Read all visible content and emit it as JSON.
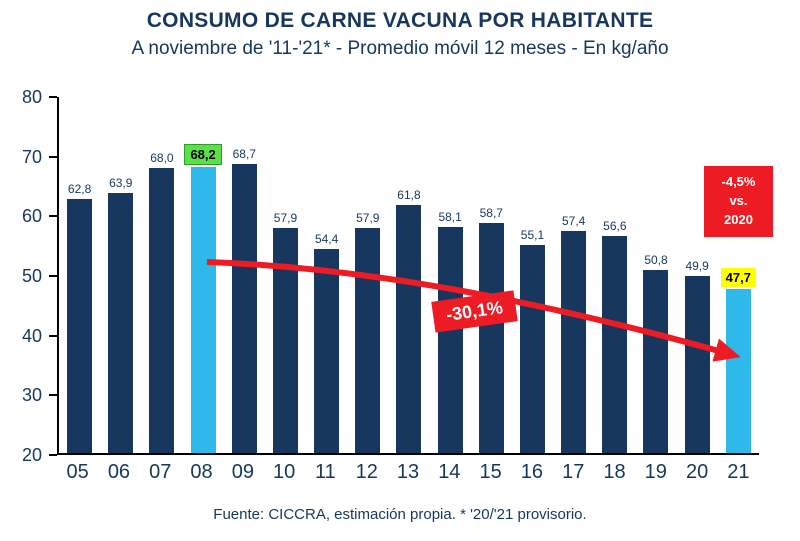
{
  "title": "CONSUMO DE CARNE VACUNA POR HABITANTE",
  "subtitle": "A noviembre de '11-'21* - Promedio móvil 12 meses -  En kg/año",
  "footer": "Fuente: CICCRA, estimación propia. * '20/'21 provisorio.",
  "annotations": {
    "decline_label": "-30,1%",
    "vs2020_label": "-4,5%\nvs.\n2020"
  },
  "chart_data": {
    "type": "bar",
    "title": "CONSUMO DE CARNE VACUNA POR HABITANTE",
    "subtitle": "A noviembre de '11-'21* - Promedio móvil 12 meses - En kg/año",
    "unit": "kg/año",
    "categories": [
      "05",
      "06",
      "07",
      "08",
      "09",
      "10",
      "11",
      "12",
      "13",
      "14",
      "15",
      "16",
      "17",
      "18",
      "19",
      "20",
      "21"
    ],
    "values": [
      62.8,
      63.9,
      68.0,
      68.2,
      68.7,
      57.9,
      54.4,
      57.9,
      61.8,
      58.1,
      58.7,
      55.1,
      57.4,
      56.6,
      50.8,
      49.9,
      47.7
    ],
    "value_labels": [
      "62,8",
      "63,9",
      "68,0",
      "68,2",
      "68,7",
      "57,9",
      "54,4",
      "57,9",
      "61,8",
      "58,1",
      "58,7",
      "55,1",
      "57,4",
      "56,6",
      "50,8",
      "49,9",
      "47,7"
    ],
    "ylim": [
      20,
      80
    ],
    "yticks": [
      20,
      30,
      40,
      50,
      60,
      70,
      80
    ],
    "highlight_bars": [
      3,
      16
    ],
    "green_label_index": 3,
    "yellow_label_index": 16,
    "grid": false,
    "legend": "none",
    "colors": {
      "bar": "#17375E",
      "highlight_bar": "#2FB9EA",
      "green_label_bg": "#5CE049",
      "yellow_label_bg": "#FFFF00",
      "annotation_bg": "#ED1C24",
      "arrow": "#ED1C24",
      "text": "#17375E"
    }
  }
}
